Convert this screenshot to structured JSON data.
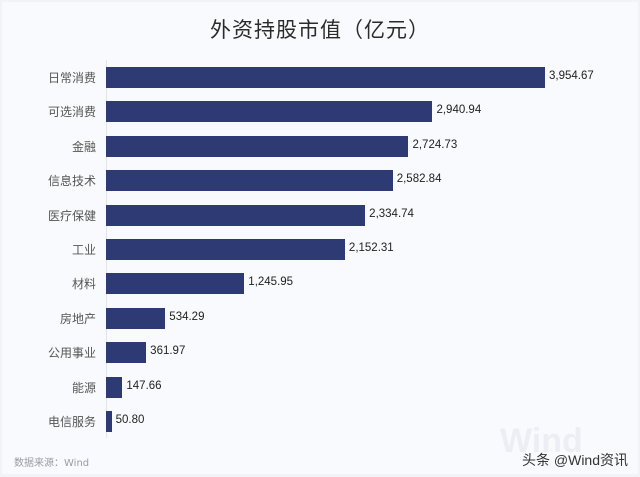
{
  "chart_data": {
    "type": "bar",
    "orientation": "horizontal",
    "title": "外资持股市值（亿元）",
    "xlabel": "",
    "ylabel": "",
    "categories": [
      "日常消费",
      "可选消费",
      "金融",
      "信息技术",
      "医疗保健",
      "工业",
      "材料",
      "房地产",
      "公用事业",
      "能源",
      "电信服务"
    ],
    "values": [
      3954.67,
      2940.94,
      2724.73,
      2582.84,
      2334.74,
      2152.31,
      1245.95,
      534.29,
      361.97,
      147.66,
      50.8
    ],
    "value_labels": [
      "3,954.67",
      "2,940.94",
      "2,724.73",
      "2,582.84",
      "2,334.74",
      "2,152.31",
      "1,245.95",
      "534.29",
      "361.97",
      "147.66",
      "50.80"
    ],
    "xlim": [
      0,
      4000
    ],
    "grid": false,
    "legend": null,
    "bar_color": "#2e3a74"
  },
  "footer": {
    "source": "数据来源：Wind",
    "credit": "头条 @Wind资讯",
    "watermark": "Wind"
  }
}
